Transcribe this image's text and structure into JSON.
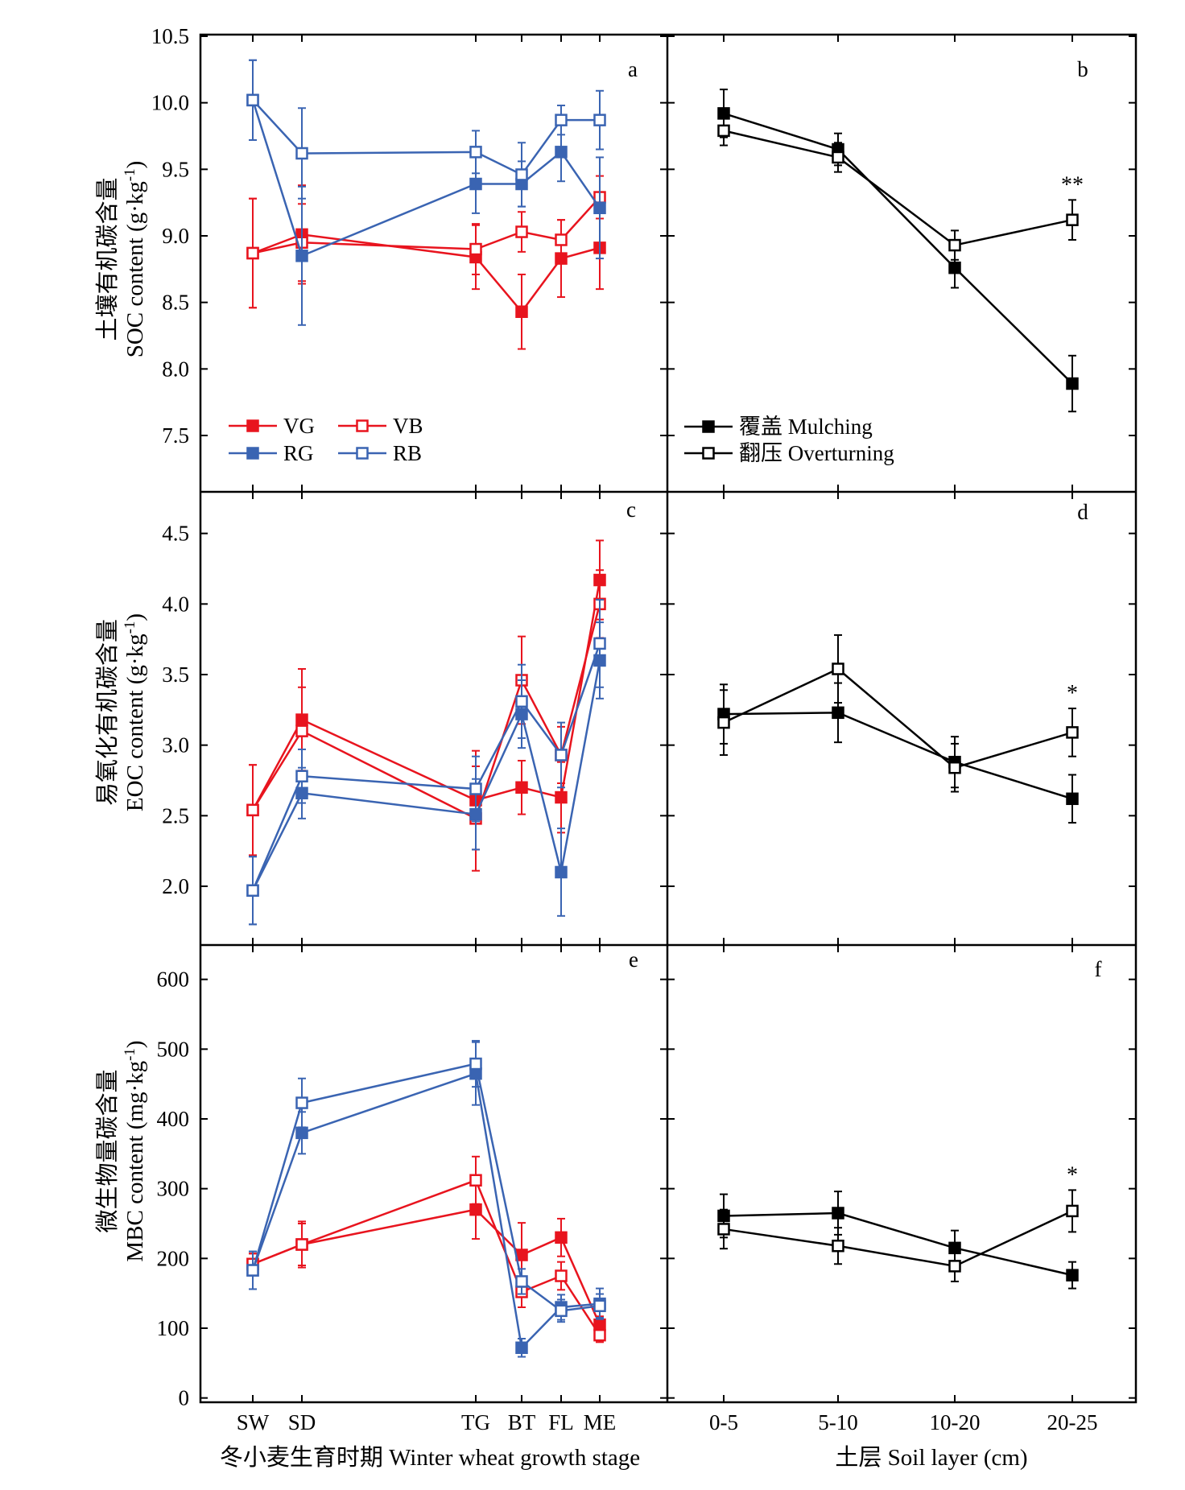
{
  "figure": {
    "ylabels": {
      "soc_cn": "土壤有机碳含量",
      "soc_en": "SOC content (g·kg",
      "eoc_cn": "易氧化有机碳含量",
      "eoc_en": "EOC content (g·kg",
      "mbc_cn": "微生物量碳含量",
      "mbc_en": "MBC content (mg·kg",
      "exponent": "-1",
      "close": ")"
    },
    "xlabels": {
      "left": "冬小麦生育时期 Winter wheat growth stage",
      "right": "土层 Soil layer (cm)"
    },
    "colors": {
      "red": "#e8141e",
      "blue": "#3a64b2",
      "black": "#000000"
    }
  },
  "chart_data": [
    {
      "type": "line",
      "panel": "a",
      "x_categories": [
        "SW",
        "SD",
        "TG",
        "BT",
        "FL",
        "ME"
      ],
      "ylim": [
        7.2,
        10.5
      ],
      "yticks": [
        7.5,
        8.0,
        8.5,
        9.0,
        9.5,
        10.0,
        10.5
      ],
      "legend": "bottom-left",
      "series": [
        {
          "name": "VG",
          "values": [
            8.87,
            9.01,
            8.84,
            8.43,
            8.83,
            8.91
          ],
          "errors": [
            0.41,
            0.37,
            0.24,
            0.28,
            0.29,
            0.31
          ]
        },
        {
          "name": "VB",
          "values": [
            8.87,
            8.95,
            8.9,
            9.03,
            8.97,
            9.29
          ],
          "errors": [
            0.41,
            0.29,
            0.19,
            0.15,
            0.15,
            0.16
          ]
        },
        {
          "name": "RG",
          "values": [
            10.02,
            8.85,
            9.39,
            9.39,
            9.63,
            9.21
          ],
          "errors": [
            0.3,
            0.52,
            0.22,
            0.17,
            0.22,
            0.38
          ]
        },
        {
          "name": "RB",
          "values": [
            10.02,
            9.62,
            9.63,
            9.46,
            9.87,
            9.87
          ],
          "errors": [
            0.3,
            0.34,
            0.16,
            0.24,
            0.11,
            0.22
          ]
        }
      ]
    },
    {
      "type": "line",
      "panel": "b",
      "x_categories": [
        "0-5",
        "5-10",
        "10-20",
        "20-25"
      ],
      "ylim": [
        7.2,
        10.5
      ],
      "legend": "bottom-left",
      "series": [
        {
          "name": "覆盖 Mulching",
          "values": [
            9.92,
            9.65,
            8.76,
            7.89
          ],
          "errors": [
            0.18,
            0.12,
            0.15,
            0.21
          ]
        },
        {
          "name": "翻压 Overturning",
          "values": [
            9.79,
            9.59,
            8.93,
            9.12
          ],
          "errors": [
            0.11,
            0.11,
            0.11,
            0.15
          ]
        }
      ],
      "annotations": [
        {
          "x": "20-25",
          "text": "**"
        }
      ]
    },
    {
      "type": "line",
      "panel": "c",
      "x_categories": [
        "SW",
        "SD",
        "TG",
        "BT",
        "FL",
        "ME"
      ],
      "ylim": [
        1.65,
        4.75
      ],
      "yticks": [
        2.0,
        2.5,
        3.0,
        3.5,
        4.0,
        4.5
      ],
      "series": [
        {
          "name": "VG",
          "values": [
            2.54,
            3.18,
            2.61,
            2.7,
            2.63,
            4.17
          ],
          "errors": [
            0.32,
            0.36,
            0.35,
            0.19,
            0.25,
            0.28
          ]
        },
        {
          "name": "VB",
          "values": [
            2.54,
            3.1,
            2.48,
            3.46,
            2.93,
            4.0
          ],
          "errors": [
            0.32,
            0.31,
            0.37,
            0.31,
            0.2,
            0.24
          ]
        },
        {
          "name": "RG",
          "values": [
            1.97,
            2.66,
            2.51,
            3.22,
            2.1,
            3.6
          ],
          "errors": [
            0.24,
            0.18,
            0.25,
            0.24,
            0.31,
            0.27
          ]
        },
        {
          "name": "RB",
          "values": [
            1.97,
            2.78,
            2.69,
            3.31,
            2.93,
            3.72
          ],
          "errors": [
            0.24,
            0.19,
            0.23,
            0.26,
            0.23,
            0.31
          ]
        }
      ]
    },
    {
      "type": "line",
      "panel": "d",
      "x_categories": [
        "0-5",
        "5-10",
        "10-20",
        "20-25"
      ],
      "ylim": [
        1.65,
        4.75
      ],
      "series": [
        {
          "name": "覆盖 Mulching",
          "values": [
            3.22,
            3.23,
            2.88,
            2.62
          ],
          "errors": [
            0.21,
            0.21,
            0.18,
            0.17
          ]
        },
        {
          "name": "翻压 Overturning",
          "values": [
            3.16,
            3.54,
            2.84,
            3.09
          ],
          "errors": [
            0.23,
            0.24,
            0.17,
            0.17
          ]
        }
      ],
      "annotations": [
        {
          "x": "20-25",
          "text": "*"
        }
      ]
    },
    {
      "type": "line",
      "panel": "e",
      "x_categories": [
        "SW",
        "SD",
        "TG",
        "BT",
        "FL",
        "ME"
      ],
      "xlabel": "冬小麦生育时期 Winter wheat growth stage",
      "ylim": [
        0,
        650
      ],
      "yticks": [
        0,
        100,
        200,
        300,
        400,
        500,
        600
      ],
      "series": [
        {
          "name": "VG",
          "values": [
            192,
            220,
            270,
            205,
            230,
            105
          ],
          "errors": [
            15,
            33,
            42,
            46,
            27,
            12
          ]
        },
        {
          "name": "VB",
          "values": [
            192,
            220,
            312,
            152,
            175,
            90
          ],
          "errors": [
            15,
            30,
            34,
            22,
            20,
            10
          ]
        },
        {
          "name": "RG",
          "values": [
            183,
            380,
            465,
            72,
            130,
            135
          ],
          "errors": [
            27,
            30,
            45,
            13,
            18,
            22
          ]
        },
        {
          "name": "RB",
          "values": [
            183,
            423,
            479,
            167,
            125,
            132
          ],
          "errors": [
            27,
            35,
            33,
            18,
            16,
            17
          ]
        }
      ]
    },
    {
      "type": "line",
      "panel": "f",
      "x_categories": [
        "0-5",
        "5-10",
        "10-20",
        "20-25"
      ],
      "xlabel": "土层 Soil layer (cm)",
      "ylim": [
        0,
        650
      ],
      "series": [
        {
          "name": "覆盖 Mulching",
          "values": [
            261,
            265,
            215,
            176
          ],
          "errors": [
            31,
            31,
            25,
            19
          ]
        },
        {
          "name": "翻压 Overturning",
          "values": [
            242,
            218,
            189,
            268
          ],
          "errors": [
            28,
            26,
            22,
            30
          ]
        }
      ],
      "annotations": [
        {
          "x": "20-25",
          "text": "*"
        }
      ]
    }
  ]
}
